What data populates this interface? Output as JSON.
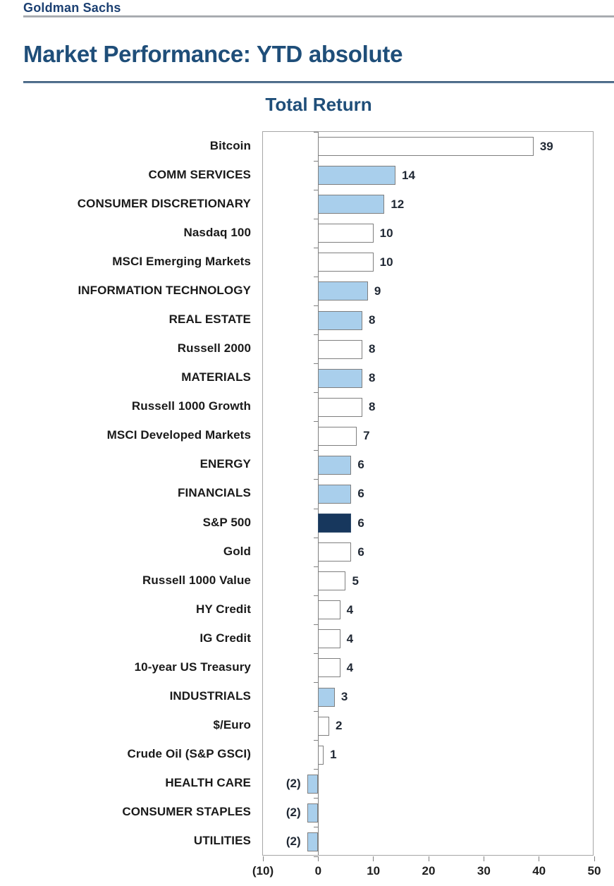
{
  "brand": {
    "logo": "Goldman Sachs"
  },
  "page_title": "Market Performance: YTD absolute",
  "chart_data": {
    "type": "bar",
    "orientation": "horizontal",
    "title": "Total Return",
    "categories": [
      "Bitcoin",
      "COMM SERVICES",
      "CONSUMER DISCRETIONARY",
      "Nasdaq 100",
      "MSCI Emerging Markets",
      "INFORMATION TECHNOLOGY",
      "REAL ESTATE",
      "Russell 2000",
      "MATERIALS",
      "Russell 1000 Growth",
      "MSCI Developed Markets",
      "ENERGY",
      "FINANCIALS",
      "S&P 500",
      "Gold",
      "Russell 1000 Value",
      "HY Credit",
      "IG Credit",
      "10-year US Treasury",
      "INDUSTRIALS",
      "$/Euro",
      "Crude Oil (S&P GSCI)",
      "HEALTH CARE",
      "CONSUMER STAPLES",
      "UTILITIES"
    ],
    "values": [
      39,
      14,
      12,
      10,
      10,
      9,
      8,
      8,
      8,
      8,
      7,
      6,
      6,
      6,
      6,
      5,
      4,
      4,
      4,
      3,
      2,
      1,
      -2,
      -2,
      -2
    ],
    "value_labels": [
      "39",
      "14",
      "12",
      "10",
      "10",
      "9",
      "8",
      "8",
      "8",
      "8",
      "7",
      "6",
      "6",
      "6",
      "6",
      "5",
      "4",
      "4",
      "4",
      "3",
      "2",
      "1",
      "(2)",
      "(2)",
      "(2)"
    ],
    "bar_styles": [
      "white",
      "blue",
      "blue",
      "white",
      "white",
      "blue",
      "blue",
      "white",
      "blue",
      "white",
      "white",
      "blue",
      "blue",
      "navy",
      "white",
      "white",
      "white",
      "white",
      "white",
      "blue",
      "white",
      "white",
      "blue",
      "blue",
      "blue"
    ],
    "colors": {
      "blue": "#a9cfec",
      "navy": "#17375d",
      "white": "#ffffff"
    },
    "xlim": [
      -10,
      50
    ],
    "x_ticks": [
      -10,
      0,
      10,
      20,
      30,
      40,
      50
    ],
    "x_tick_labels": [
      "(10)",
      "0",
      "10",
      "20",
      "30",
      "40",
      "50"
    ],
    "grid": false,
    "legend": false
  }
}
